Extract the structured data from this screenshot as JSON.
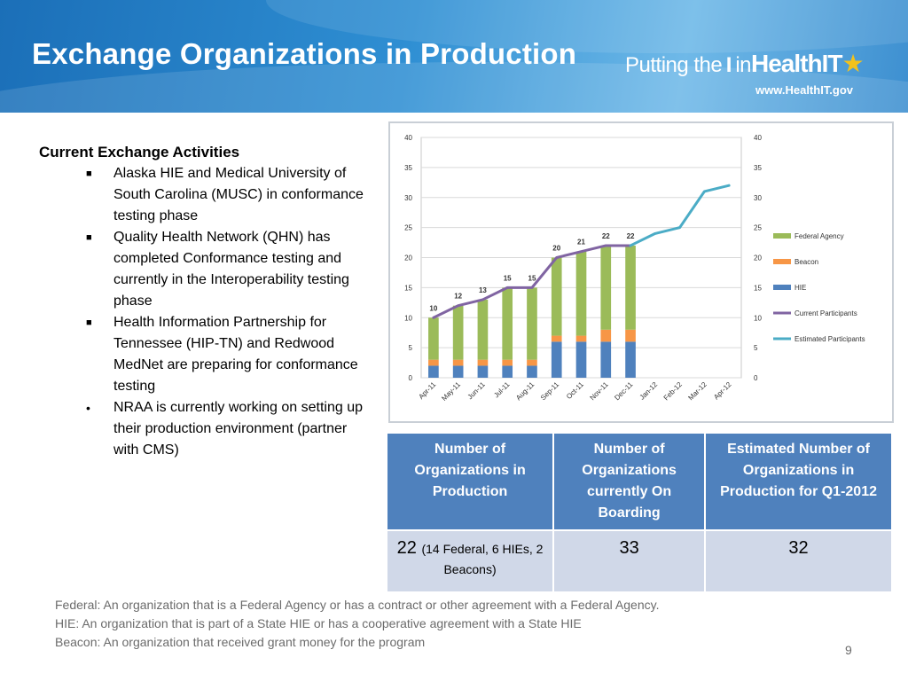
{
  "header": {
    "title": "Exchange Organizations in Production",
    "logo_prefix": "Putting the",
    "logo_i": "I",
    "logo_in": "in",
    "logo_health": "Health",
    "logo_it": "IT",
    "logo_url": "www.HealthIT.gov"
  },
  "left": {
    "heading": "Current Exchange Activities",
    "bullets": [
      {
        "marker": "■",
        "text": "Alaska HIE and Medical University of South Carolina (MUSC) in conformance testing phase"
      },
      {
        "marker": "■",
        "text": "Quality Health Network (QHN) has completed Conformance testing and currently in the Interoperability testing phase"
      },
      {
        "marker": "■",
        "text": "Health Information Partnership for Tennessee (HIP-TN) and Redwood MedNet are preparing for conformance testing"
      },
      {
        "marker": "•",
        "text": "NRAA is currently working on setting up their production environment (partner with CMS)"
      }
    ]
  },
  "chart_data": {
    "type": "bar",
    "categories": [
      "Apr-11",
      "May-11",
      "Jun-11",
      "Jul-11",
      "Aug-11",
      "Sep-11",
      "Oct-11",
      "Nov-11",
      "Dec-11",
      "Jan-12",
      "Feb-12",
      "Mar-12",
      "Apr-12"
    ],
    "ylim": [
      0,
      40
    ],
    "yticks": [
      0,
      5,
      10,
      15,
      20,
      25,
      30,
      35,
      40
    ],
    "grid": true,
    "legend_position": "right",
    "series": [
      {
        "name": "HIE",
        "kind": "stacked-bar",
        "color": "#4f81bd",
        "values": [
          2,
          2,
          2,
          2,
          2,
          6,
          6,
          6,
          6,
          null,
          null,
          null,
          null
        ]
      },
      {
        "name": "Beacon",
        "kind": "stacked-bar",
        "color": "#f79646",
        "values": [
          1,
          1,
          1,
          1,
          1,
          1,
          1,
          2,
          2,
          null,
          null,
          null,
          null
        ]
      },
      {
        "name": "Federal Agency",
        "kind": "stacked-bar",
        "color": "#9bbb59",
        "values": [
          7,
          9,
          10,
          12,
          12,
          13,
          14,
          14,
          14,
          null,
          null,
          null,
          null
        ]
      },
      {
        "name": "Current Participants",
        "kind": "line",
        "color": "#8064a2",
        "values": [
          10,
          12,
          13,
          15,
          15,
          20,
          21,
          22,
          22,
          null,
          null,
          null,
          null
        ]
      },
      {
        "name": "Estimated Participants",
        "kind": "line",
        "color": "#4bacc6",
        "values": [
          null,
          null,
          null,
          null,
          null,
          null,
          null,
          null,
          22,
          24,
          25,
          31,
          32
        ]
      }
    ],
    "data_labels": [
      "10",
      "12",
      "13",
      "15",
      "15",
      "20",
      "21",
      "22",
      "22"
    ],
    "legend_order": [
      "Federal Agency",
      "Beacon",
      "HIE",
      "Current Participants",
      "Estimated Participants"
    ]
  },
  "table": {
    "headers": [
      "Number of Organizations in Production",
      "Number of Organizations currently On Boarding",
      "Estimated Number of Organizations in Production for Q1-2012"
    ],
    "cell1_main": "22",
    "cell1_detail": "(14 Federal, 6 HIEs, 2 Beacons)",
    "cell2": "33",
    "cell3": "32"
  },
  "footnotes": [
    "Federal: An organization that is a Federal Agency or has a contract or other agreement with a Federal Agency.",
    "HIE: An organization that is part of a State HIE or has a cooperative agreement with a State HIE",
    "Beacon: An organization that received grant money for the program"
  ],
  "page_number": "9"
}
